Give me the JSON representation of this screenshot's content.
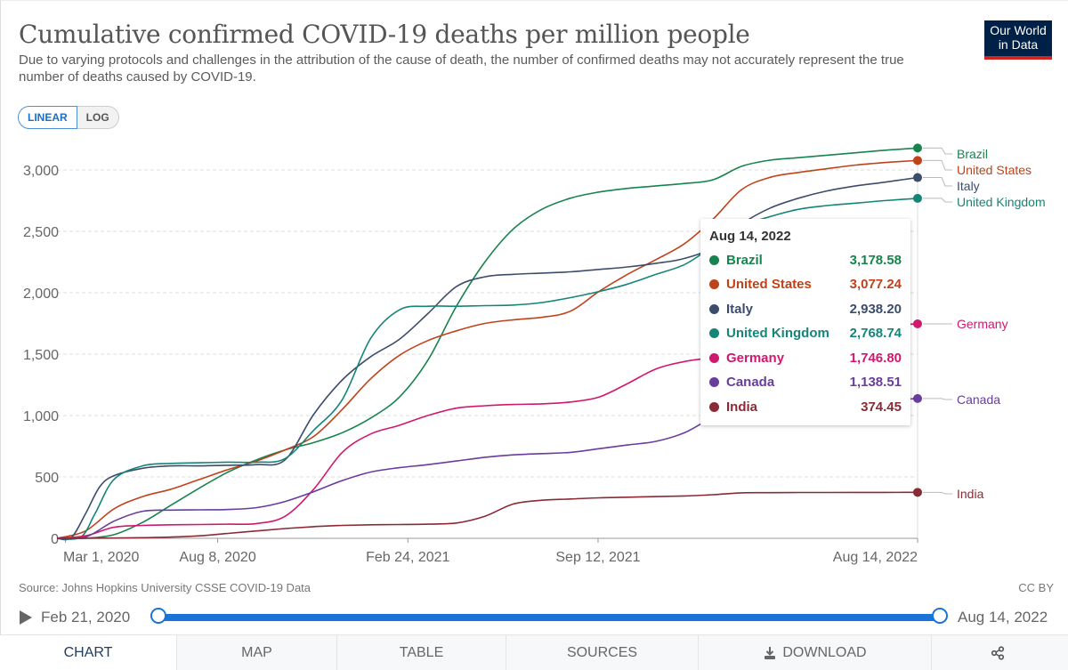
{
  "header": {
    "title": "Cumulative confirmed COVID-19 deaths per million people",
    "subtitle": "Due to varying protocols and challenges in the attribution of the cause of death, the number of confirmed deaths may not accurately represent the true number of deaths caused by COVID-19.",
    "logo_line1": "Our World",
    "logo_line2": "in Data"
  },
  "scale_toggle": {
    "linear_label": "LINEAR",
    "log_label": "LOG",
    "selected": "LINEAR"
  },
  "tooltip": {
    "date": "Aug 14, 2022",
    "rows": [
      {
        "name": "Brazil",
        "value": "3,178.58",
        "color": "#18844d"
      },
      {
        "name": "United States",
        "value": "3,077.24",
        "color": "#c0421a"
      },
      {
        "name": "Italy",
        "value": "2,938.20",
        "color": "#3c4d6b"
      },
      {
        "name": "United Kingdom",
        "value": "2,768.74",
        "color": "#158578"
      },
      {
        "name": "Germany",
        "value": "1,746.80",
        "color": "#d0186f"
      },
      {
        "name": "Canada",
        "value": "1,138.51",
        "color": "#6a3c9c"
      },
      {
        "name": "India",
        "value": "374.45",
        "color": "#8a2a35"
      }
    ]
  },
  "footer": {
    "source": "Source: Johns Hopkins University CSSE COVID-19 Data",
    "license": "CC BY"
  },
  "timeline": {
    "start_label": "Feb 21, 2020",
    "end_label": "Aug 14, 2022",
    "start_fraction": 0,
    "end_fraction": 1,
    "accent": "#1a73d9"
  },
  "tabs": [
    {
      "label": "CHART",
      "active": true,
      "icon": ""
    },
    {
      "label": "MAP",
      "active": false,
      "icon": ""
    },
    {
      "label": "TABLE",
      "active": false,
      "icon": ""
    },
    {
      "label": "SOURCES",
      "active": false,
      "icon": ""
    },
    {
      "label": "DOWNLOAD",
      "active": false,
      "icon": "download-icon"
    },
    {
      "label": "",
      "active": false,
      "icon": "share-icon"
    }
  ],
  "chart_data": {
    "type": "line",
    "title": "Cumulative confirmed COVID-19 deaths per million people",
    "xlabel": "",
    "ylabel": "",
    "x_unit": "days since Feb 21, 2020",
    "xlim": [
      0,
      905
    ],
    "ylim": [
      0,
      3000
    ],
    "grid": true,
    "yticks": [
      0,
      500,
      1000,
      1500,
      2000,
      2500,
      3000
    ],
    "ytick_labels": [
      "0",
      "500",
      "1,000",
      "1,500",
      "2,000",
      "2,500",
      "3,000"
    ],
    "xticks": [
      9,
      169,
      369,
      569,
      905
    ],
    "xtick_labels": [
      "Mar 1, 2020",
      "Aug 8, 2020",
      "Feb 24, 2021",
      "Sep 12, 2021",
      "Aug 14, 2022"
    ],
    "legend": "right (line-end labels)",
    "hover_date": "Aug 14, 2022",
    "series": [
      {
        "name": "Brazil",
        "color": "#18844d",
        "x": [
          0,
          30,
          60,
          90,
          120,
          150,
          180,
          210,
          240,
          270,
          300,
          330,
          360,
          390,
          420,
          450,
          480,
          510,
          540,
          570,
          600,
          630,
          660,
          690,
          720,
          750,
          780,
          810,
          840,
          870,
          905
        ],
        "y": [
          0,
          1,
          30,
          130,
          270,
          410,
          540,
          640,
          720,
          780,
          860,
          980,
          1150,
          1450,
          1890,
          2250,
          2520,
          2680,
          2770,
          2820,
          2850,
          2870,
          2890,
          2920,
          3030,
          3080,
          3100,
          3120,
          3140,
          3160,
          3178.58
        ]
      },
      {
        "name": "United States",
        "color": "#c0421a",
        "x": [
          0,
          30,
          60,
          90,
          120,
          150,
          180,
          210,
          240,
          270,
          300,
          330,
          360,
          390,
          420,
          450,
          480,
          510,
          540,
          570,
          600,
          630,
          660,
          690,
          720,
          750,
          780,
          810,
          840,
          870,
          905
        ],
        "y": [
          0,
          60,
          240,
          340,
          400,
          480,
          560,
          630,
          720,
          830,
          1050,
          1300,
          1490,
          1610,
          1690,
          1750,
          1780,
          1800,
          1850,
          2010,
          2150,
          2270,
          2400,
          2600,
          2840,
          2940,
          2980,
          3010,
          3040,
          3060,
          3077.24
        ]
      },
      {
        "name": "Italy",
        "color": "#3c4d6b",
        "x": [
          0,
          15,
          30,
          45,
          60,
          90,
          120,
          150,
          180,
          210,
          240,
          270,
          300,
          330,
          360,
          390,
          420,
          450,
          480,
          510,
          540,
          570,
          600,
          630,
          660,
          690,
          720,
          750,
          780,
          810,
          840,
          870,
          905
        ],
        "y": [
          0,
          5,
          200,
          420,
          510,
          570,
          590,
          590,
          595,
          600,
          640,
          1010,
          1290,
          1480,
          1620,
          1830,
          2050,
          2130,
          2150,
          2160,
          2170,
          2190,
          2210,
          2240,
          2280,
          2370,
          2560,
          2690,
          2770,
          2830,
          2870,
          2900,
          2938.2
        ]
      },
      {
        "name": "United Kingdom",
        "color": "#158578",
        "x": [
          0,
          25,
          40,
          60,
          90,
          120,
          150,
          180,
          210,
          240,
          270,
          300,
          330,
          360,
          390,
          420,
          450,
          480,
          510,
          540,
          570,
          600,
          630,
          660,
          690,
          720,
          750,
          780,
          810,
          840,
          870,
          905
        ],
        "y": [
          0,
          10,
          200,
          480,
          590,
          610,
          615,
          620,
          620,
          650,
          880,
          1130,
          1630,
          1860,
          1890,
          1890,
          1895,
          1900,
          1920,
          1960,
          2010,
          2070,
          2150,
          2230,
          2380,
          2540,
          2620,
          2680,
          2710,
          2730,
          2750,
          2768.74
        ]
      },
      {
        "name": "Germany",
        "color": "#d0186f",
        "x": [
          0,
          30,
          60,
          90,
          120,
          150,
          180,
          210,
          240,
          270,
          300,
          330,
          360,
          390,
          420,
          450,
          480,
          510,
          540,
          570,
          600,
          630,
          660,
          690,
          720,
          750,
          780,
          810,
          840,
          870,
          905
        ],
        "y": [
          0,
          20,
          90,
          105,
          110,
          112,
          115,
          120,
          180,
          400,
          700,
          850,
          920,
          1000,
          1060,
          1080,
          1090,
          1095,
          1110,
          1150,
          1260,
          1380,
          1440,
          1480,
          1580,
          1640,
          1670,
          1690,
          1710,
          1730,
          1746.8
        ]
      },
      {
        "name": "Canada",
        "color": "#6a3c9c",
        "x": [
          0,
          30,
          60,
          90,
          120,
          150,
          180,
          210,
          240,
          270,
          300,
          330,
          360,
          390,
          420,
          450,
          480,
          510,
          540,
          570,
          600,
          630,
          660,
          690,
          720,
          750,
          780,
          810,
          840,
          870,
          905
        ],
        "y": [
          0,
          10,
          140,
          220,
          230,
          232,
          235,
          250,
          300,
          380,
          470,
          540,
          575,
          600,
          630,
          660,
          680,
          690,
          700,
          730,
          760,
          790,
          860,
          980,
          1020,
          1050,
          1070,
          1090,
          1110,
          1125,
          1138.51
        ]
      },
      {
        "name": "India",
        "color": "#8a2a35",
        "x": [
          0,
          30,
          60,
          90,
          120,
          150,
          180,
          210,
          240,
          270,
          300,
          330,
          360,
          390,
          420,
          450,
          480,
          510,
          540,
          570,
          600,
          630,
          660,
          690,
          720,
          750,
          780,
          810,
          840,
          870,
          905
        ],
        "y": [
          0,
          0,
          2,
          5,
          10,
          20,
          40,
          60,
          80,
          95,
          105,
          110,
          112,
          115,
          125,
          180,
          280,
          310,
          320,
          330,
          335,
          340,
          345,
          355,
          370,
          372,
          373,
          373,
          374,
          374,
          374.45
        ]
      }
    ]
  }
}
